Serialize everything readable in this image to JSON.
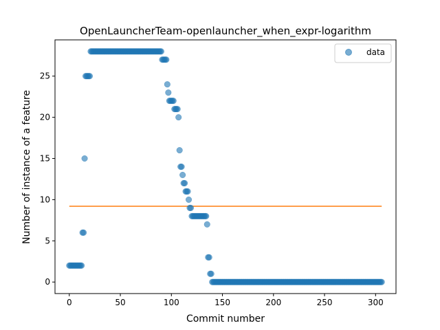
{
  "chart_data": {
    "type": "scatter",
    "title": "OpenLauncherTeam-openlauncher_when_expr-logarithm",
    "xlabel": "Commit number",
    "ylabel": "Number of instance of a feature",
    "xlim": [
      -14,
      320
    ],
    "ylim": [
      -1.4,
      29.4
    ],
    "xticks": [
      0,
      50,
      100,
      150,
      200,
      250,
      300
    ],
    "yticks": [
      0,
      5,
      10,
      15,
      20,
      25
    ],
    "grid": false,
    "legend": {
      "position": "top-right",
      "entries": [
        "data"
      ]
    },
    "colors": {
      "data": "#1f77b4",
      "fit": "#ff7f0e"
    },
    "series": [
      {
        "name": "data",
        "kind": "scatter",
        "segments": [
          {
            "x_start": 0,
            "x_end": 12,
            "y": 2
          },
          {
            "x": 13,
            "y": 6
          },
          {
            "x": 14,
            "y": 6
          },
          {
            "x": 15,
            "y": 15
          },
          {
            "x_start": 16,
            "x_end": 20,
            "y": 25
          },
          {
            "x_start": 21,
            "x_end": 90,
            "y": 28
          },
          {
            "x_start": 91,
            "x_end": 95,
            "y": 27
          },
          {
            "x": 96,
            "y": 24
          },
          {
            "x": 97,
            "y": 23
          },
          {
            "x_start": 98,
            "x_end": 102,
            "y": 22
          },
          {
            "x_start": 103,
            "x_end": 106,
            "y": 21
          },
          {
            "x": 107,
            "y": 20
          },
          {
            "x": 108,
            "y": 16
          },
          {
            "x_start": 109,
            "x_end": 110,
            "y": 14
          },
          {
            "x": 111,
            "y": 13
          },
          {
            "x_start": 112,
            "x_end": 113,
            "y": 12
          },
          {
            "x_start": 114,
            "x_end": 116,
            "y": 11
          },
          {
            "x": 117,
            "y": 10
          },
          {
            "x_start": 118,
            "x_end": 119,
            "y": 9
          },
          {
            "x_start": 120,
            "x_end": 134,
            "y": 8
          },
          {
            "x": 135,
            "y": 7
          },
          {
            "x_start": 136,
            "x_end": 137,
            "y": 3
          },
          {
            "x_start": 138,
            "x_end": 139,
            "y": 1
          },
          {
            "x_start": 140,
            "x_end": 306,
            "y": 0
          }
        ]
      },
      {
        "kind": "line",
        "x": [
          0,
          306
        ],
        "values": [
          9.2,
          9.2
        ]
      }
    ]
  }
}
